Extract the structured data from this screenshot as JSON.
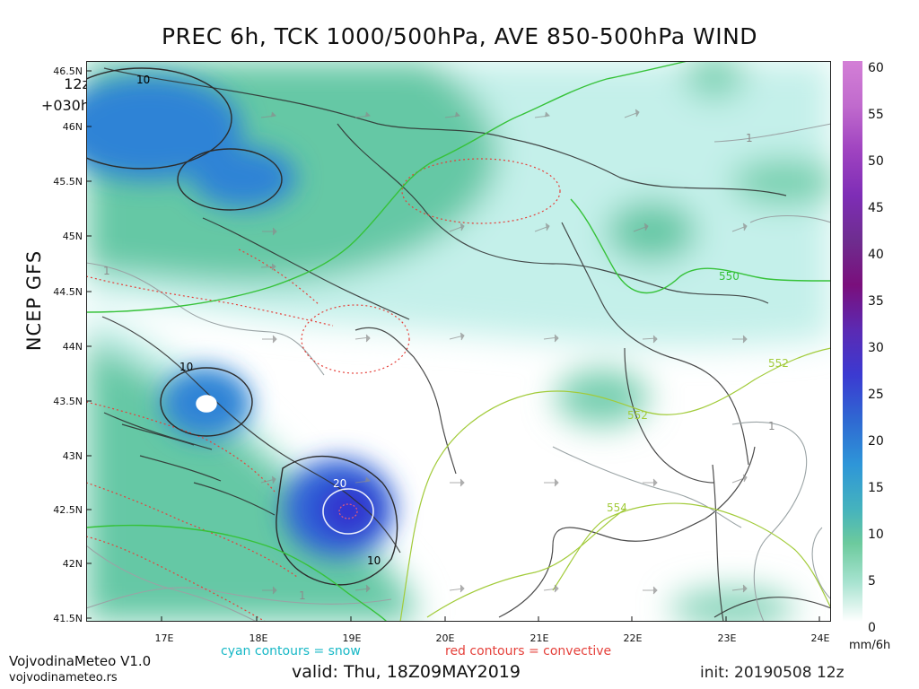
{
  "title": "PREC 6h, TCK 1000/500hPa, AVE 850-500hPa WIND",
  "run": {
    "hour": "12z",
    "lead": "+030h"
  },
  "model_label": "NCEP GFS",
  "map": {
    "lat_labels": [
      "46.5N",
      "46N",
      "45.5N",
      "45N",
      "44.5N",
      "44N",
      "43.5N",
      "43N",
      "42.5N",
      "42N",
      "41.5N"
    ],
    "lon_labels": [
      "17E",
      "18E",
      "19E",
      "20E",
      "21E",
      "22E",
      "23E",
      "24E"
    ],
    "precip_contour_labels": [
      "10",
      "10",
      "20",
      "10"
    ],
    "thickness_labels": [
      "550",
      "552",
      "552",
      "554"
    ],
    "grey_contour_labels": [
      "1",
      "1",
      "1",
      "1"
    ],
    "colors": {
      "low_precip": "#c4f0ea",
      "mid_precip": "#62c7a5",
      "heavy_precip": "#2f7fd3",
      "extreme_precip": "#312dd3",
      "thickness": "#39c93b",
      "convective": "#e5413b"
    }
  },
  "legend": {
    "values": [
      "60",
      "55",
      "50",
      "45",
      "40",
      "35",
      "30",
      "25",
      "20",
      "15",
      "10",
      "5",
      "0"
    ],
    "unit": "mm/6h",
    "colors": [
      "#d37fd6",
      "#b251c8",
      "#8b28b2",
      "#6f2eac",
      "#6d2a9a",
      "#7a0f7c",
      "#a11d8f",
      "#3a3cc3",
      "#2458d1",
      "#2c8bd8",
      "#3aa7c6",
      "#69cb9e",
      "#e9fbf8"
    ]
  },
  "footer": {
    "brand": "VojvodinaMeteo V1.0",
    "site": "vojvodinameteo.rs",
    "snow_note": "cyan contours = snow",
    "convective_note": "red contours = convective",
    "valid": "valid: Thu, 18Z09MAY2019",
    "init": "init: 20190508 12z"
  }
}
